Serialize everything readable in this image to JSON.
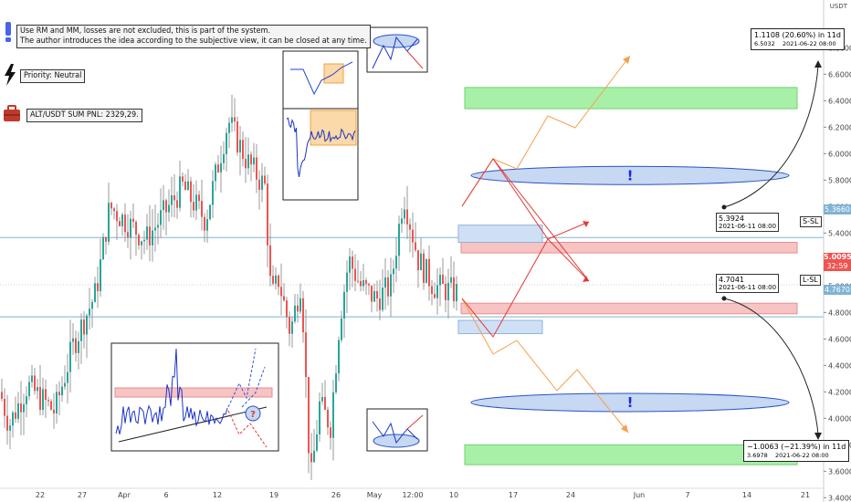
{
  "chart_data": {
    "type": "candlestick",
    "currency": "USDT",
    "y_ticks": [
      3.4,
      3.6,
      3.8,
      4.0,
      4.2,
      4.4,
      4.6,
      4.8,
      5.0,
      5.2,
      5.4,
      5.6,
      5.8,
      6.0,
      6.2,
      6.4,
      6.6,
      6.8
    ],
    "x_ticks": [
      "22",
      "27",
      "Apr",
      "6",
      "12",
      "19",
      "26",
      "May",
      "12:00",
      "10",
      "17",
      "24",
      "Jun",
      "7",
      "14",
      "21"
    ],
    "ylim": [
      3.37,
      6.9
    ],
    "current_price": "5.0095",
    "countdown": "32:59",
    "resistance_price": "5.3660",
    "support_price": "4.7670",
    "short_label": "S-SL",
    "long_label": "L-SL",
    "short_point": {
      "price": "5.3924",
      "time": "2021-06-11 08:00"
    },
    "long_point": {
      "price": "4.7041",
      "time": "2021-06-11 08:00"
    },
    "upper_target": {
      "line1": "1.1108 (20.60%) in 11d",
      "price": "6.5032",
      "time": "2021-06-22  08:00"
    },
    "lower_target": {
      "line1": "−1.0063 (−21.39%) in 11d",
      "price": "3.6978",
      "time": "2021-06-22  08:00"
    },
    "scenario_up_path": [
      5.39,
      5.78,
      5.68,
      6.15,
      5.96,
      6.48
    ],
    "scenario_down_path": [
      4.7,
      4.32,
      4.52,
      4.02,
      4.16,
      3.69
    ],
    "colors": {
      "up": "#26a69a",
      "down": "#ef5350",
      "hline": "#7fb3d5",
      "target_zone": "#a8f0a8",
      "sl_zone": "#f7c3c3",
      "orange": "#f5a04a",
      "red": "#e53935"
    }
  },
  "notes": {
    "disclaimer_1": "Use RM and MM, losses are not excluded, this is part of the system.",
    "disclaimer_2": "The author introduces the idea according to the subjective view, it can be closed at any time.",
    "priority": "Priority: Neutral",
    "pnl": "ALT/USDT SUM PNL: 2329,29."
  },
  "icons": {
    "excl": "exclamation-icon",
    "bolt": "lightning-icon",
    "bag": "briefcase-icon"
  }
}
